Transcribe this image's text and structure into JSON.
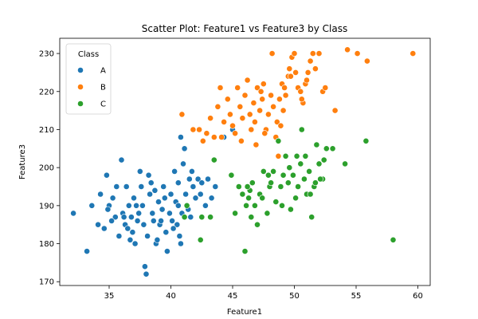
{
  "chart_data": {
    "type": "scatter",
    "title": "Scatter Plot: Feature1 vs Feature3 by Class",
    "xlabel": "Feature1",
    "ylabel": "Feature3",
    "xlim": [
      31,
      61
    ],
    "ylim": [
      169,
      234
    ],
    "xticks": [
      35,
      40,
      45,
      50,
      55,
      60
    ],
    "yticks": [
      170,
      180,
      190,
      200,
      210,
      220,
      230
    ],
    "grid": false,
    "legend": {
      "title": "Class",
      "placement": "top-left"
    },
    "series": [
      {
        "name": "A",
        "color": "#1f77b4",
        "points": [
          [
            32.1,
            188
          ],
          [
            33.2,
            178
          ],
          [
            33.6,
            190
          ],
          [
            34.1,
            185
          ],
          [
            34.3,
            193
          ],
          [
            34.6,
            184
          ],
          [
            34.8,
            198
          ],
          [
            35.0,
            190
          ],
          [
            35.3,
            192
          ],
          [
            35.5,
            187
          ],
          [
            35.6,
            195
          ],
          [
            35.8,
            182
          ],
          [
            36.0,
            202
          ],
          [
            36.1,
            188
          ],
          [
            36.3,
            185
          ],
          [
            36.4,
            195
          ],
          [
            36.6,
            190
          ],
          [
            36.8,
            187
          ],
          [
            36.9,
            183
          ],
          [
            37.0,
            192
          ],
          [
            37.1,
            180
          ],
          [
            37.3,
            186
          ],
          [
            37.5,
            199
          ],
          [
            37.6,
            195
          ],
          [
            37.7,
            190
          ],
          [
            37.8,
            185
          ],
          [
            37.9,
            174
          ],
          [
            38.0,
            172
          ],
          [
            38.1,
            182
          ],
          [
            38.2,
            198
          ],
          [
            38.3,
            193
          ],
          [
            38.5,
            188
          ],
          [
            38.6,
            186
          ],
          [
            38.8,
            180
          ],
          [
            39.0,
            191
          ],
          [
            39.1,
            185
          ],
          [
            39.3,
            189
          ],
          [
            39.4,
            195
          ],
          [
            39.6,
            183
          ],
          [
            39.7,
            178
          ],
          [
            39.9,
            188
          ],
          [
            40.0,
            193
          ],
          [
            40.1,
            186
          ],
          [
            40.3,
            199
          ],
          [
            40.4,
            191
          ],
          [
            40.5,
            185
          ],
          [
            40.6,
            196
          ],
          [
            40.7,
            182
          ],
          [
            40.8,
            208
          ],
          [
            40.9,
            188
          ],
          [
            41.0,
            201
          ],
          [
            41.1,
            205
          ],
          [
            41.2,
            193
          ],
          [
            41.3,
            190
          ],
          [
            41.5,
            197
          ],
          [
            41.6,
            187
          ],
          [
            41.8,
            195
          ],
          [
            42.0,
            192
          ],
          [
            42.2,
            197
          ],
          [
            42.5,
            196
          ],
          [
            42.8,
            190
          ],
          [
            43.0,
            197
          ],
          [
            43.3,
            192
          ],
          [
            44.3,
            208
          ],
          [
            45.0,
            210
          ],
          [
            36.2,
            187
          ],
          [
            37.2,
            190
          ],
          [
            38.7,
            194
          ],
          [
            39.2,
            186
          ],
          [
            40.2,
            184
          ],
          [
            35.2,
            186
          ],
          [
            36.5,
            184
          ],
          [
            37.4,
            188
          ],
          [
            38.4,
            196
          ],
          [
            39.5,
            192
          ],
          [
            40.6,
            190
          ],
          [
            41.4,
            189
          ],
          [
            42.4,
            193
          ],
          [
            34.9,
            189
          ],
          [
            36.7,
            181
          ],
          [
            38.9,
            181
          ],
          [
            40.8,
            180
          ],
          [
            41.7,
            199
          ],
          [
            43.6,
            195
          ]
        ]
      },
      {
        "name": "B",
        "color": "#ff7f0e",
        "points": [
          [
            40.9,
            214
          ],
          [
            41.8,
            210
          ],
          [
            42.3,
            210
          ],
          [
            42.6,
            207
          ],
          [
            42.9,
            209
          ],
          [
            43.2,
            213
          ],
          [
            43.5,
            208
          ],
          [
            43.8,
            216
          ],
          [
            44.1,
            208
          ],
          [
            44.3,
            212
          ],
          [
            44.6,
            218
          ],
          [
            44.8,
            214
          ],
          [
            45.0,
            211
          ],
          [
            45.2,
            209
          ],
          [
            45.4,
            221
          ],
          [
            45.6,
            216
          ],
          [
            45.8,
            213
          ],
          [
            46.0,
            219
          ],
          [
            46.2,
            223
          ],
          [
            46.4,
            214
          ],
          [
            46.5,
            210
          ],
          [
            46.7,
            217
          ],
          [
            46.8,
            212
          ],
          [
            47.0,
            221
          ],
          [
            47.2,
            215
          ],
          [
            47.4,
            218
          ],
          [
            47.5,
            222
          ],
          [
            47.7,
            210
          ],
          [
            47.9,
            214
          ],
          [
            48.1,
            219
          ],
          [
            48.3,
            216
          ],
          [
            48.5,
            208
          ],
          [
            48.6,
            212
          ],
          [
            48.8,
            218
          ],
          [
            49.0,
            222
          ],
          [
            49.1,
            215
          ],
          [
            49.3,
            219
          ],
          [
            49.5,
            224
          ],
          [
            49.6,
            226
          ],
          [
            49.8,
            229
          ],
          [
            50.0,
            230
          ],
          [
            50.1,
            225
          ],
          [
            50.3,
            221
          ],
          [
            50.5,
            220
          ],
          [
            50.7,
            217
          ],
          [
            50.9,
            222
          ],
          [
            51.1,
            225
          ],
          [
            51.3,
            228
          ],
          [
            51.5,
            230
          ],
          [
            51.7,
            226
          ],
          [
            52.0,
            230
          ],
          [
            52.3,
            220
          ],
          [
            52.5,
            221
          ],
          [
            53.3,
            215
          ],
          [
            54.3,
            231
          ],
          [
            55.1,
            230
          ],
          [
            55.9,
            228
          ],
          [
            59.6,
            230
          ],
          [
            48.7,
            203
          ],
          [
            48.2,
            230
          ],
          [
            44.0,
            221
          ],
          [
            45.7,
            207
          ],
          [
            46.9,
            206
          ],
          [
            47.6,
            209
          ],
          [
            48.9,
            211
          ],
          [
            49.7,
            224
          ],
          [
            50.6,
            218
          ],
          [
            51.0,
            223
          ],
          [
            49.2,
            221
          ],
          [
            47.3,
            220
          ]
        ]
      },
      {
        "name": "C",
        "color": "#2ca02c",
        "points": [
          [
            41.1,
            187
          ],
          [
            41.3,
            190
          ],
          [
            42.4,
            181
          ],
          [
            42.5,
            187
          ],
          [
            43.2,
            187
          ],
          [
            43.5,
            202
          ],
          [
            44.9,
            198
          ],
          [
            45.2,
            188
          ],
          [
            45.5,
            195
          ],
          [
            45.8,
            193
          ],
          [
            46.0,
            178
          ],
          [
            46.1,
            190
          ],
          [
            46.3,
            192
          ],
          [
            46.5,
            187
          ],
          [
            46.6,
            196
          ],
          [
            46.8,
            190
          ],
          [
            47.0,
            185
          ],
          [
            47.2,
            193
          ],
          [
            47.5,
            199
          ],
          [
            47.8,
            188
          ],
          [
            48.0,
            195
          ],
          [
            48.3,
            199
          ],
          [
            48.5,
            191
          ],
          [
            48.7,
            207
          ],
          [
            48.9,
            195
          ],
          [
            49.1,
            198
          ],
          [
            49.3,
            203
          ],
          [
            49.5,
            196
          ],
          [
            49.7,
            189
          ],
          [
            49.9,
            198
          ],
          [
            50.1,
            192
          ],
          [
            50.3,
            195
          ],
          [
            50.5,
            201
          ],
          [
            50.6,
            210
          ],
          [
            50.8,
            197
          ],
          [
            51.0,
            193
          ],
          [
            51.2,
            199
          ],
          [
            51.4,
            187
          ],
          [
            51.6,
            195
          ],
          [
            51.8,
            206
          ],
          [
            52.0,
            201
          ],
          [
            52.3,
            197
          ],
          [
            52.6,
            205
          ],
          [
            53.1,
            205
          ],
          [
            54.1,
            201
          ],
          [
            55.8,
            207
          ],
          [
            58.0,
            181
          ],
          [
            46.4,
            194
          ],
          [
            47.4,
            192
          ],
          [
            48.1,
            196
          ],
          [
            49.6,
            200
          ],
          [
            50.2,
            203
          ],
          [
            51.3,
            193
          ],
          [
            52.1,
            197
          ],
          [
            50.9,
            203
          ],
          [
            51.7,
            196
          ],
          [
            52.4,
            202
          ],
          [
            49.0,
            190
          ],
          [
            47.9,
            198
          ],
          [
            46.2,
            195
          ]
        ]
      }
    ]
  }
}
